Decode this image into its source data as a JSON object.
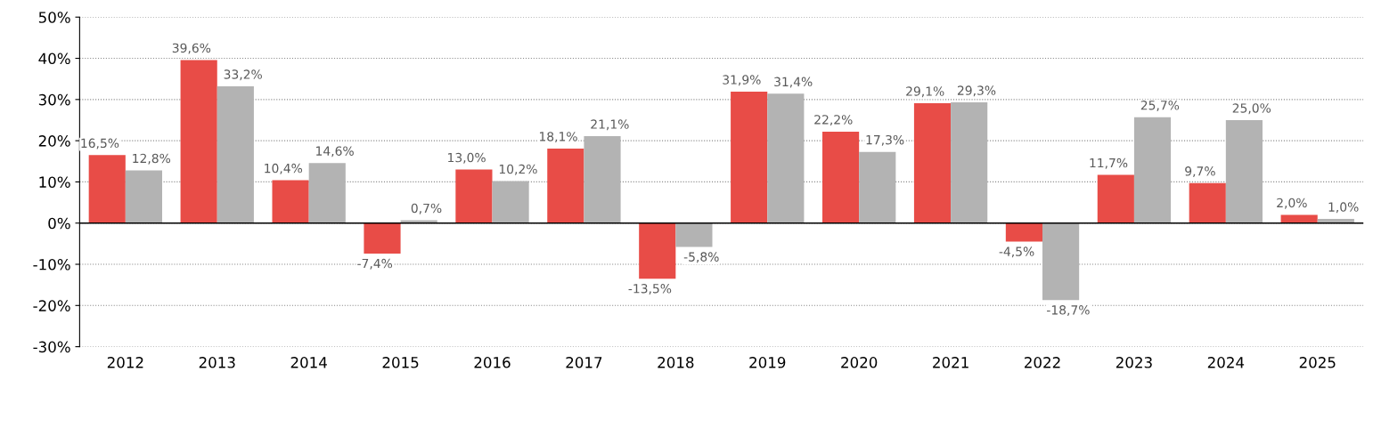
{
  "chart_data": {
    "type": "bar",
    "categories": [
      "2012",
      "2013",
      "2014",
      "2015",
      "2016",
      "2017",
      "2018",
      "2019",
      "2020",
      "2021",
      "2022",
      "2023",
      "2024",
      "2025"
    ],
    "series": [
      {
        "color": "#e84c47",
        "values": [
          16.5,
          39.6,
          10.4,
          -7.4,
          13.0,
          18.1,
          -13.5,
          31.9,
          22.2,
          29.1,
          -4.5,
          11.7,
          9.7,
          2.0
        ],
        "value_labels": [
          "16,5%",
          "39,6%",
          "10,4%",
          "-7,4%",
          "13,0%",
          "18,1%",
          "-13,5%",
          "31,9%",
          "22,2%",
          "29,1%",
          "-4,5%",
          "11,7%",
          "9,7%",
          "2,0%"
        ]
      },
      {
        "color": "#b3b3b3",
        "values": [
          12.8,
          33.2,
          14.6,
          0.7,
          10.2,
          21.1,
          -5.8,
          31.4,
          17.3,
          29.3,
          -18.7,
          25.7,
          25.0,
          1.0
        ],
        "value_labels": [
          "12,8%",
          "33,2%",
          "14,6%",
          "0,7%",
          "10,2%",
          "21,1%",
          "-5,8%",
          "31,4%",
          "17,3%",
          "29,3%",
          "-18,7%",
          "25,7%",
          "25,0%",
          "1,0%"
        ]
      }
    ],
    "ylim": [
      -30,
      50
    ],
    "yticks": [
      {
        "value": -30,
        "label": "-30%"
      },
      {
        "value": -20,
        "label": "-20%"
      },
      {
        "value": -10,
        "label": "-10%"
      },
      {
        "value": 0,
        "label": "0%"
      },
      {
        "value": 10,
        "label": "10%"
      },
      {
        "value": 20,
        "label": "20%"
      },
      {
        "value": 30,
        "label": "30%"
      },
      {
        "value": 40,
        "label": "40%"
      },
      {
        "value": 50,
        "label": "50%"
      }
    ],
    "grid": "y"
  }
}
